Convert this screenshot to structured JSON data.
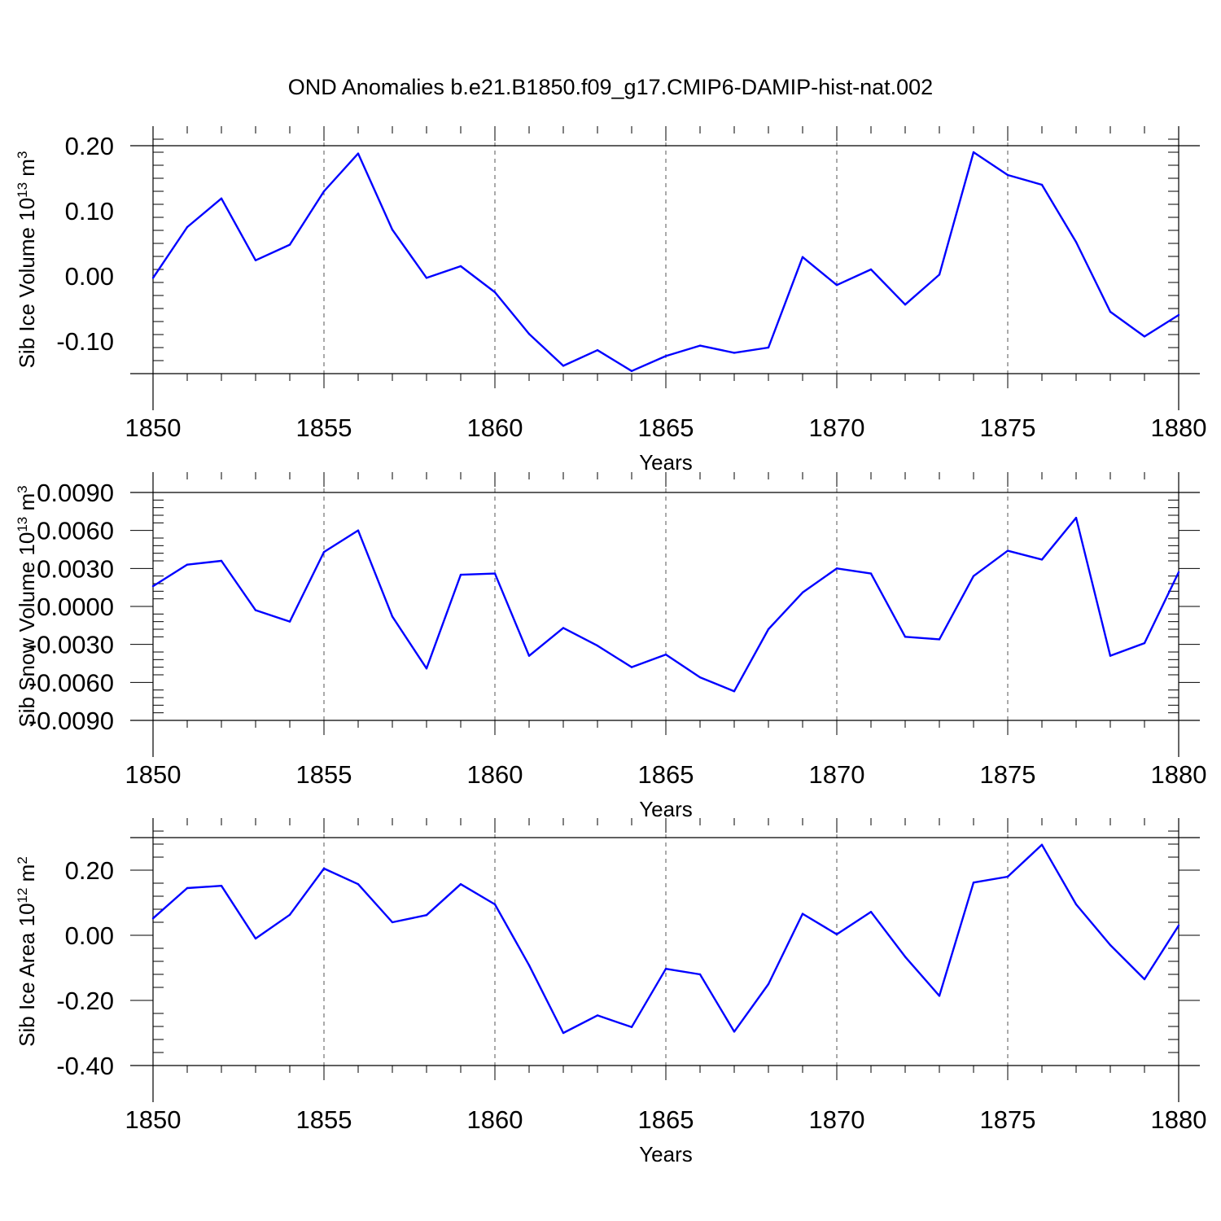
{
  "figure_title": "OND Anomalies b.e21.B1850.f09_g17.CMIP6-DAMIP-hist-nat.002",
  "colors": {
    "series": "#0000ff",
    "axes": "#000000",
    "grid": "#555555"
  },
  "chart_data": [
    {
      "type": "line",
      "title": "OND Anomalies b.e21.B1850.f09_g17.CMIP6-DAMIP-hist-nat.002",
      "xlabel": "Years",
      "ylabel_main": "Sib Ice Volume 10",
      "ylabel_exp": "13",
      "ylabel_unit": " m",
      "ylabel_unit_exp": "3",
      "xlim": [
        1850,
        1880
      ],
      "ylim": [
        -0.15,
        0.2
      ],
      "xticks": [
        "1850",
        "1855",
        "1860",
        "1865",
        "1870",
        "1875",
        "1880"
      ],
      "yticks": [
        "0.20",
        "0.10",
        "0.00",
        "-0.10"
      ],
      "ytick_values": [
        0.2,
        0.1,
        0.0,
        -0.1
      ],
      "grid": "vertical dashed at major x ticks",
      "series": [
        {
          "name": "Sib Ice Volume",
          "x": [
            1850,
            1851,
            1852,
            1853,
            1854,
            1855,
            1856,
            1857,
            1858,
            1859,
            1860,
            1861,
            1862,
            1863,
            1864,
            1865,
            1866,
            1867,
            1868,
            1869,
            1870,
            1871,
            1872,
            1873,
            1874,
            1875,
            1876,
            1877,
            1878,
            1879,
            1880
          ],
          "values": [
            -0.003,
            0.075,
            0.119,
            0.024,
            0.048,
            0.13,
            0.188,
            0.071,
            -0.003,
            0.015,
            -0.025,
            -0.089,
            -0.138,
            -0.114,
            -0.146,
            -0.123,
            -0.107,
            -0.118,
            -0.11,
            0.029,
            -0.014,
            0.01,
            -0.044,
            0.002,
            0.19,
            0.155,
            0.14,
            0.052,
            -0.055,
            -0.093,
            -0.06
          ]
        }
      ]
    },
    {
      "type": "line",
      "title": "",
      "xlabel": "Years",
      "ylabel_main": "Sib Snow Volume 10",
      "ylabel_exp": "13",
      "ylabel_unit": " m",
      "ylabel_unit_exp": "3",
      "xlim": [
        1850,
        1880
      ],
      "ylim": [
        -0.009,
        0.009
      ],
      "xticks": [
        "1850",
        "1855",
        "1860",
        "1865",
        "1870",
        "1875",
        "1880"
      ],
      "yticks": [
        "0.0090",
        "0.0060",
        "0.0030",
        "0.0000",
        "-0.0030",
        "-0.0060",
        "-0.0090"
      ],
      "ytick_values": [
        0.009,
        0.006,
        0.003,
        0.0,
        -0.003,
        -0.006,
        -0.009
      ],
      "grid": "vertical dashed at major x ticks",
      "series": [
        {
          "name": "Sib Snow Volume",
          "x": [
            1850,
            1851,
            1852,
            1853,
            1854,
            1855,
            1856,
            1857,
            1858,
            1859,
            1860,
            1861,
            1862,
            1863,
            1864,
            1865,
            1866,
            1867,
            1868,
            1869,
            1870,
            1871,
            1872,
            1873,
            1874,
            1875,
            1876,
            1877,
            1878,
            1879,
            1880
          ],
          "values": [
            0.0016,
            0.0033,
            0.0036,
            -0.0003,
            -0.0012,
            0.0043,
            0.006,
            -0.0008,
            -0.0049,
            0.0025,
            0.0026,
            -0.0039,
            -0.0017,
            -0.0031,
            -0.0048,
            -0.0038,
            -0.0056,
            -0.0067,
            -0.0018,
            0.0011,
            0.003,
            0.0026,
            -0.0024,
            -0.0026,
            0.0024,
            0.0044,
            0.0037,
            0.007,
            -0.0039,
            -0.0029,
            0.0027
          ]
        }
      ]
    },
    {
      "type": "line",
      "title": "",
      "xlabel": "Years",
      "ylabel_main": "Sib Ice Area 10",
      "ylabel_exp": "12",
      "ylabel_unit": " m",
      "ylabel_unit_exp": "2",
      "xlim": [
        1850,
        1880
      ],
      "ylim": [
        -0.4,
        0.3
      ],
      "xticks": [
        "1850",
        "1855",
        "1860",
        "1865",
        "1870",
        "1875",
        "1880"
      ],
      "yticks": [
        "0.20",
        "0.00",
        "-0.20",
        "-0.40"
      ],
      "ytick_values": [
        0.2,
        0.0,
        -0.2,
        -0.4
      ],
      "grid": "vertical dashed at major x ticks",
      "series": [
        {
          "name": "Sib Ice Area",
          "x": [
            1850,
            1851,
            1852,
            1853,
            1854,
            1855,
            1856,
            1857,
            1858,
            1859,
            1860,
            1861,
            1862,
            1863,
            1864,
            1865,
            1866,
            1867,
            1868,
            1869,
            1870,
            1871,
            1872,
            1873,
            1874,
            1875,
            1876,
            1877,
            1878,
            1879,
            1880
          ],
          "values": [
            0.052,
            0.145,
            0.152,
            -0.01,
            0.063,
            0.205,
            0.157,
            0.04,
            0.062,
            0.157,
            0.095,
            -0.092,
            -0.3,
            -0.246,
            -0.282,
            -0.103,
            -0.12,
            -0.296,
            -0.15,
            0.066,
            0.003,
            0.072,
            -0.066,
            -0.186,
            0.162,
            0.18,
            0.278,
            0.095,
            -0.03,
            -0.135,
            0.03
          ]
        }
      ]
    }
  ]
}
